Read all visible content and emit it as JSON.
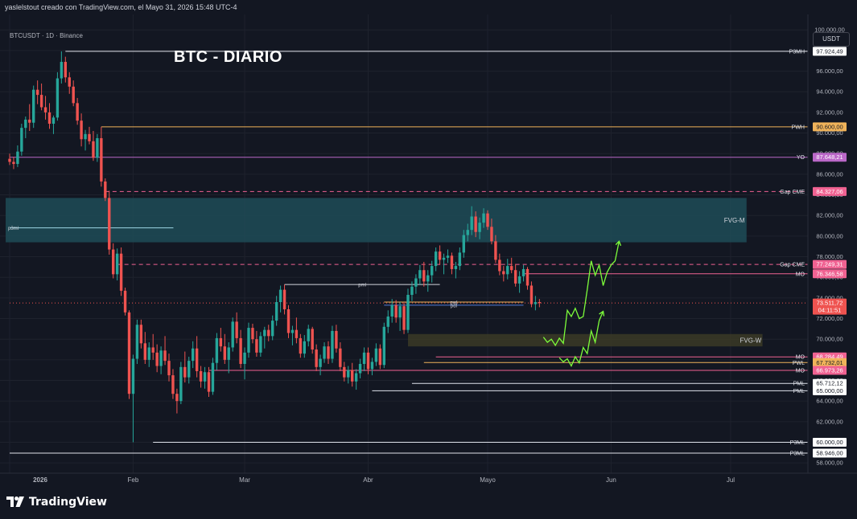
{
  "header": {
    "caption": "yaslelstout creado con TradingView.com, el Mayo 31, 2026 15:48 UTC-4"
  },
  "symbol": {
    "label": "BTCUSDT · 1D · Binance"
  },
  "chart_title": "BTC - DIARIO",
  "currency": "USDT",
  "colors": {
    "background": "#131722",
    "up": "#26a69a",
    "down": "#ef5350",
    "projection": "#7cfc3a",
    "fvg_m": "#1f4c57",
    "fvg_w": "#3b3a26"
  },
  "price_axis": {
    "ticks": [
      "100.000,00",
      "98.000,00",
      "96.000,00",
      "94.000,00",
      "92.000,00",
      "90.000,00",
      "88.000,00",
      "86.000,00",
      "84.000,00",
      "82.000,00",
      "80.000,00",
      "78.000,00",
      "76.000,00",
      "74.000,00",
      "72.000,00",
      "70.000,00",
      "68.000,00",
      "66.000,00",
      "64.000,00",
      "62.000,00",
      "60.000,00",
      "58.000,00"
    ],
    "tick_values": [
      100000,
      98000,
      96000,
      94000,
      92000,
      90000,
      88000,
      86000,
      84000,
      82000,
      80000,
      78000,
      76000,
      74000,
      72000,
      70000,
      68000,
      66000,
      64000,
      62000,
      60000,
      58000
    ]
  },
  "time_axis": {
    "ticks": [
      "2026",
      "Feb",
      "Mar",
      "Abr",
      "Mayo",
      "Jun",
      "Jul"
    ],
    "tick_days": [
      0,
      31,
      59,
      90,
      120,
      151,
      181
    ]
  },
  "levels": [
    {
      "label": "P3MH",
      "value": 97924.49,
      "price_label": "97.924,49",
      "color": "#e0e3eb",
      "style": "solid",
      "start_day": 14
    },
    {
      "label": "PWH",
      "value": 90600.0,
      "price_label": "90.600,00",
      "color": "#f0b35a",
      "style": "solid",
      "start_day": 23
    },
    {
      "label": "YO",
      "value": 87648.21,
      "price_label": "87.648,21",
      "color": "#ba68c8",
      "style": "solid",
      "start_day": 0
    },
    {
      "label": "Gap CME",
      "value": 84327.06,
      "price_label": "84.327,06",
      "color": "#f06292",
      "style": "dashed",
      "start_day": 24
    },
    {
      "label": "Gap CME",
      "value": 77249.31,
      "price_label": "77.249,31",
      "color": "#f06292",
      "style": "dashed",
      "start_day": 27
    },
    {
      "label": "MO",
      "value": 76346.58,
      "price_label": "76.346,58",
      "color": "#f06292",
      "style": "solid",
      "start_day": 129
    },
    {
      "label": "",
      "value": 73511.72,
      "price_label": "73.511,72",
      "sub_label": "04:11:51",
      "color": "#ef5350",
      "style": "dotted",
      "start_day": 0
    },
    {
      "label": "MO",
      "value": 68284.49,
      "price_label": "68.284,49",
      "color": "#f06292",
      "style": "solid",
      "start_day": 107
    },
    {
      "label": "PWL",
      "value": 67732.01,
      "price_label": "67.732,01",
      "color": "#f0b35a",
      "style": "solid",
      "start_day": 104
    },
    {
      "label": "MO",
      "value": 66973.26,
      "price_label": "66.973,26",
      "color": "#f06292",
      "style": "solid",
      "start_day": 50
    },
    {
      "label": "PML",
      "value": 65712.12,
      "price_label": "65.712,12",
      "color": "#e0e3eb",
      "style": "solid",
      "start_day": 101
    },
    {
      "label": "PML",
      "value": 65000.0,
      "price_label": "65.000,00",
      "color": "#e0e3eb",
      "style": "solid",
      "start_day": 91
    },
    {
      "label": "P3ML",
      "value": 60000.0,
      "price_label": "60.000,00",
      "color": "#e0e3eb",
      "style": "solid",
      "start_day": 36
    },
    {
      "label": "P3ML",
      "value": 58946.0,
      "price_label": "58.946,00",
      "color": "#e0e3eb",
      "style": "solid",
      "start_day": 0
    }
  ],
  "zones": [
    {
      "label": "FVG-M",
      "top": 83700,
      "bottom": 79400,
      "start_day": -1,
      "end_day": 185
    },
    {
      "label": "FVG-W",
      "top": 70500,
      "bottom": 69300,
      "start_day": 100,
      "end_day": 189
    }
  ],
  "zone_lines": [
    {
      "label": "p3ml",
      "value": 80800,
      "start_day": 0,
      "end_day": 31
    }
  ],
  "short_levels": [
    {
      "label": "pml",
      "value": 75300,
      "start_day": 69,
      "end_day": 108,
      "color": "#d1d4dc"
    },
    {
      "label": "pwl",
      "value": 73600,
      "start_day": 94,
      "end_day": 129,
      "color": "#f0b35a"
    },
    {
      "label": "pdl",
      "value": 73300,
      "start_day": 94,
      "end_day": 129,
      "color": "#4f7bd8"
    }
  ],
  "projection_paths": [
    [
      [
        134,
        70200
      ],
      [
        135,
        69700
      ],
      [
        136,
        70000
      ],
      [
        137,
        69400
      ],
      [
        138,
        70100
      ],
      [
        139,
        69600
      ],
      [
        140,
        72800
      ],
      [
        141,
        72200
      ],
      [
        142,
        73000
      ],
      [
        143,
        72000
      ],
      [
        144,
        72200
      ],
      [
        145,
        74800
      ],
      [
        146,
        77600
      ],
      [
        147,
        76200
      ],
      [
        148,
        77200
      ],
      [
        149,
        75200
      ],
      [
        150,
        76500
      ],
      [
        151,
        77200
      ],
      [
        152,
        77600
      ],
      [
        153,
        79500
      ]
    ],
    [
      [
        138,
        68200
      ],
      [
        139,
        67800
      ],
      [
        140,
        68100
      ],
      [
        141,
        67400
      ],
      [
        142,
        68300
      ],
      [
        143,
        67700
      ],
      [
        144,
        69200
      ],
      [
        145,
        68600
      ],
      [
        146,
        70800
      ],
      [
        147,
        69700
      ],
      [
        148,
        71800
      ],
      [
        149,
        72700
      ]
    ]
  ],
  "chart_data": {
    "type": "candlestick",
    "title": "BTC - DIARIO",
    "x_start": "2026-01-01",
    "ylim": [
      57000,
      101500
    ],
    "candles": [
      [
        87500,
        88000,
        86900,
        87200
      ],
      [
        87200,
        87700,
        86500,
        87000
      ],
      [
        87000,
        88800,
        86700,
        88200
      ],
      [
        88200,
        90900,
        87800,
        90500
      ],
      [
        90500,
        91600,
        89500,
        91300
      ],
      [
        91300,
        92800,
        90200,
        91000
      ],
      [
        91000,
        94600,
        90500,
        94200
      ],
      [
        94200,
        95100,
        92800,
        93700
      ],
      [
        93700,
        94800,
        92200,
        92500
      ],
      [
        92500,
        93600,
        91300,
        92000
      ],
      [
        92000,
        92900,
        90400,
        90900
      ],
      [
        90900,
        91700,
        89900,
        91500
      ],
      [
        91500,
        95900,
        91200,
        95300
      ],
      [
        95300,
        97924,
        94800,
        96900
      ],
      [
        96900,
        97400,
        94900,
        95400
      ],
      [
        95400,
        95900,
        93800,
        94500
      ],
      [
        94500,
        95100,
        92600,
        92900
      ],
      [
        92900,
        93400,
        90800,
        91200
      ],
      [
        91200,
        91900,
        88700,
        89400
      ],
      [
        89400,
        90300,
        88300,
        89900
      ],
      [
        89900,
        90600,
        88900,
        89200
      ],
      [
        89200,
        90200,
        87300,
        87600
      ],
      [
        87600,
        89900,
        87200,
        89500
      ],
      [
        89500,
        90600,
        84800,
        85300
      ],
      [
        85300,
        85600,
        83400,
        83700
      ],
      [
        83700,
        84400,
        78200,
        78700
      ],
      [
        78700,
        79300,
        75900,
        76300
      ],
      [
        76300,
        78800,
        75700,
        78300
      ],
      [
        78300,
        78900,
        74200,
        74700
      ],
      [
        74700,
        75000,
        72300,
        72600
      ],
      [
        72600,
        72800,
        64200,
        64700
      ],
      [
        64700,
        68500,
        60000,
        68100
      ],
      [
        68100,
        71900,
        67600,
        71400
      ],
      [
        71400,
        71900,
        69100,
        69600
      ],
      [
        69600,
        70700,
        67600,
        68000
      ],
      [
        68000,
        69700,
        67300,
        69200
      ],
      [
        69200,
        70500,
        68000,
        68700
      ],
      [
        68700,
        69500,
        66800,
        67400
      ],
      [
        67400,
        69300,
        66600,
        68900
      ],
      [
        68900,
        70300,
        67500,
        67900
      ],
      [
        67900,
        68600,
        65900,
        66500
      ],
      [
        66500,
        67100,
        64200,
        64700
      ],
      [
        64700,
        65200,
        62800,
        64000
      ],
      [
        64000,
        67800,
        63700,
        67300
      ],
      [
        67300,
        68800,
        65800,
        66300
      ],
      [
        66300,
        68300,
        65700,
        67900
      ],
      [
        67900,
        69800,
        67200,
        69100
      ],
      [
        69100,
        70300,
        66300,
        66900
      ],
      [
        66900,
        67400,
        65300,
        65900
      ],
      [
        65900,
        67300,
        65200,
        66800
      ],
      [
        66800,
        67300,
        64400,
        64900
      ],
      [
        64900,
        68200,
        64600,
        67700
      ],
      [
        67700,
        70600,
        67000,
        70100
      ],
      [
        70100,
        71100,
        68800,
        69300
      ],
      [
        69300,
        70500,
        67600,
        68000
      ],
      [
        68000,
        69700,
        66700,
        69200
      ],
      [
        69200,
        72100,
        68800,
        71700
      ],
      [
        71700,
        72600,
        69600,
        70100
      ],
      [
        70100,
        70900,
        67200,
        67600
      ],
      [
        67600,
        69200,
        66100,
        68700
      ],
      [
        68700,
        71600,
        68200,
        71100
      ],
      [
        71100,
        71500,
        69600,
        70000
      ],
      [
        70000,
        70800,
        68300,
        68700
      ],
      [
        68700,
        70700,
        68300,
        70300
      ],
      [
        70300,
        71200,
        69100,
        70900
      ],
      [
        70900,
        71400,
        69800,
        70300
      ],
      [
        70300,
        72300,
        69900,
        71800
      ],
      [
        71800,
        74200,
        71300,
        73600
      ],
      [
        73600,
        75200,
        72600,
        74800
      ],
      [
        74800,
        75300,
        72400,
        72900
      ],
      [
        72900,
        73300,
        70100,
        70600
      ],
      [
        70600,
        71300,
        69400,
        70900
      ],
      [
        70900,
        72100,
        69600,
        70100
      ],
      [
        70100,
        70500,
        68200,
        68600
      ],
      [
        68600,
        70400,
        68200,
        69800
      ],
      [
        69800,
        71400,
        69300,
        71000
      ],
      [
        71000,
        71200,
        68600,
        69000
      ],
      [
        69000,
        69500,
        66900,
        67300
      ],
      [
        67300,
        68500,
        66500,
        68100
      ],
      [
        68100,
        69700,
        67700,
        69300
      ],
      [
        69300,
        69800,
        67600,
        68100
      ],
      [
        68100,
        71300,
        67700,
        70800
      ],
      [
        70800,
        71400,
        68700,
        69100
      ],
      [
        69100,
        69700,
        66900,
        67300
      ],
      [
        67300,
        67800,
        65900,
        66300
      ],
      [
        66300,
        67400,
        65700,
        67000
      ],
      [
        67000,
        67700,
        65400,
        65900
      ],
      [
        65900,
        67100,
        65100,
        66700
      ],
      [
        66700,
        68100,
        66200,
        67600
      ],
      [
        67600,
        69200,
        66900,
        68700
      ],
      [
        68700,
        69200,
        66600,
        67100
      ],
      [
        67100,
        68200,
        66500,
        67800
      ],
      [
        67800,
        69600,
        67400,
        69100
      ],
      [
        69100,
        69500,
        67100,
        67500
      ],
      [
        67500,
        71600,
        67200,
        71200
      ],
      [
        71200,
        72800,
        70600,
        72200
      ],
      [
        72200,
        73900,
        71600,
        73300
      ],
      [
        73300,
        73800,
        71600,
        72100
      ],
      [
        72100,
        73600,
        70800,
        73200
      ],
      [
        73200,
        73600,
        70500,
        70900
      ],
      [
        70900,
        74900,
        70600,
        74300
      ],
      [
        74300,
        75600,
        73700,
        75100
      ],
      [
        75100,
        76300,
        74400,
        75900
      ],
      [
        75900,
        77200,
        75300,
        76700
      ],
      [
        76700,
        77500,
        75100,
        75600
      ],
      [
        75600,
        76700,
        74600,
        76200
      ],
      [
        76200,
        77600,
        75500,
        77100
      ],
      [
        77100,
        78900,
        76600,
        78500
      ],
      [
        78500,
        79100,
        77200,
        77700
      ],
      [
        77700,
        78300,
        76300,
        77900
      ],
      [
        77900,
        78700,
        77400,
        78100
      ],
      [
        78100,
        78400,
        76300,
        76800
      ],
      [
        76800,
        77500,
        75900,
        77100
      ],
      [
        77100,
        78900,
        76700,
        78400
      ],
      [
        78400,
        80600,
        77900,
        80100
      ],
      [
        80100,
        81200,
        79500,
        80600
      ],
      [
        80600,
        82900,
        80100,
        81900
      ],
      [
        81900,
        82400,
        79900,
        80400
      ],
      [
        80400,
        81800,
        79700,
        81300
      ],
      [
        81300,
        82700,
        80800,
        82200
      ],
      [
        82200,
        82500,
        80600,
        80900
      ],
      [
        80900,
        81700,
        79200,
        79500
      ],
      [
        79500,
        80100,
        77400,
        77700
      ],
      [
        77700,
        78300,
        76200,
        76600
      ],
      [
        76600,
        77100,
        75600,
        76300
      ],
      [
        76300,
        77800,
        75800,
        77100
      ],
      [
        77100,
        77900,
        76400,
        76700
      ],
      [
        76700,
        77300,
        75100,
        75400
      ],
      [
        75400,
        76600,
        74500,
        76100
      ],
      [
        76100,
        77200,
        75600,
        76800
      ],
      [
        76800,
        77000,
        74800,
        75200
      ],
      [
        75200,
        75600,
        73100,
        73400
      ],
      [
        73400,
        74200,
        72800,
        73600
      ],
      [
        73600,
        73900,
        73100,
        73500
      ]
    ]
  }
}
